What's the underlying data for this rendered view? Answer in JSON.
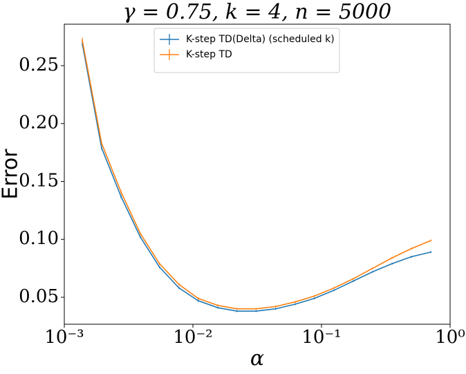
{
  "chart_data": {
    "type": "line",
    "title": "γ = 0.75, k = 4, n = 5000",
    "x_label": "α",
    "y_label": "Error",
    "x": [
      0.00138,
      0.00195,
      0.00276,
      0.0039,
      0.0055,
      0.0078,
      0.011,
      0.0156,
      0.022,
      0.031,
      0.044,
      0.0625,
      0.088,
      0.125,
      0.177,
      0.25,
      0.354,
      0.5,
      0.71
    ],
    "series": [
      {
        "name": "K-step TD(Delta) (scheduled k)",
        "color": "#1f77b4",
        "values": [
          0.269,
          0.179,
          0.137,
          0.102,
          0.076,
          0.058,
          0.047,
          0.041,
          0.038,
          0.038,
          0.04,
          0.044,
          0.049,
          0.056,
          0.064,
          0.072,
          0.079,
          0.085,
          0.089
        ],
        "errors": [
          0.002,
          0.0015,
          0.0015,
          0.001,
          0.001,
          0.001,
          0.001,
          0.0008,
          0.0008,
          0.0008,
          0.0008,
          0.0008,
          0.0008,
          0.0008,
          0.0008,
          0.0008,
          0.0008,
          0.0008,
          0.0008
        ]
      },
      {
        "name": "K-step TD",
        "color": "#ff7f0e",
        "values": [
          0.272,
          0.183,
          0.141,
          0.105,
          0.079,
          0.061,
          0.049,
          0.043,
          0.04,
          0.04,
          0.042,
          0.046,
          0.051,
          0.058,
          0.066,
          0.075,
          0.084,
          0.092,
          0.099
        ],
        "errors": [
          0.002,
          0.0015,
          0.0015,
          0.001,
          0.001,
          0.001,
          0.001,
          0.0008,
          0.0008,
          0.0008,
          0.0008,
          0.0008,
          0.0008,
          0.0008,
          0.0008,
          0.0008,
          0.0008,
          0.0008,
          0.0008
        ]
      }
    ],
    "xscale": "log",
    "xlim": [
      0.001,
      1
    ],
    "xticks": [
      {
        "value": 0.001,
        "label": "10⁻³"
      },
      {
        "value": 0.01,
        "label": "10⁻²"
      },
      {
        "value": 0.1,
        "label": "10⁻¹"
      },
      {
        "value": 1,
        "label": "10⁰"
      }
    ],
    "ylim": [
      0.0267,
      0.2858
    ],
    "yticks": [
      0.05,
      {
        "value": 0.1,
        "label": "0.10"
      },
      0.15,
      {
        "value": 0.2,
        "label": "0.20"
      },
      0.25
    ],
    "grid": false,
    "legend": "upper center"
  }
}
